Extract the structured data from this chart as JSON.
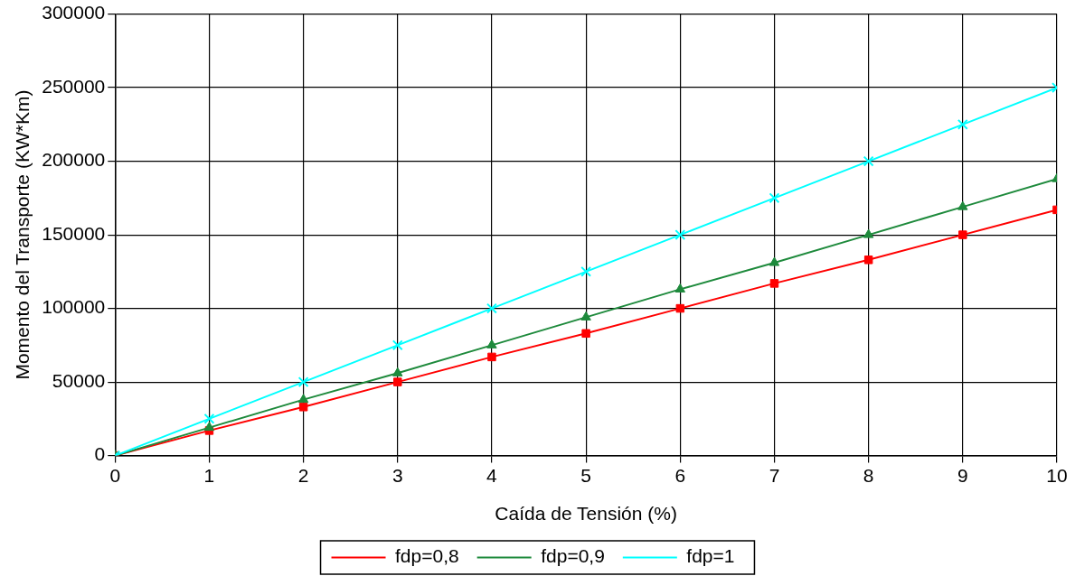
{
  "chart_data": {
    "type": "line",
    "xlabel": "Caída de Tensión (%)",
    "ylabel": "Momento del Transporte (KW*Km)",
    "x": [
      0,
      1,
      2,
      3,
      4,
      5,
      6,
      7,
      8,
      9,
      10
    ],
    "series": [
      {
        "name": "fdp=0,8",
        "color": "#ff0000",
        "marker": "square",
        "values": [
          0,
          17000,
          33000,
          50000,
          67000,
          83000,
          100000,
          117000,
          133000,
          150000,
          167000
        ]
      },
      {
        "name": "fdp=0,9",
        "color": "#1e8a3c",
        "marker": "triangle",
        "values": [
          0,
          19000,
          38000,
          56000,
          75000,
          94000,
          113000,
          131000,
          150000,
          169000,
          188000
        ]
      },
      {
        "name": "fdp=1",
        "color": "#00ffff",
        "marker": "cross",
        "values": [
          0,
          25000,
          50000,
          75000,
          100000,
          125000,
          150000,
          175000,
          200000,
          225000,
          250000
        ]
      }
    ],
    "xlim": [
      0,
      10
    ],
    "xticks": [
      0,
      1,
      2,
      3,
      4,
      5,
      6,
      7,
      8,
      9,
      10
    ],
    "ylim": [
      0,
      300000
    ],
    "yticks": [
      0,
      50000,
      100000,
      150000,
      200000,
      250000,
      300000
    ],
    "grid": true,
    "legend": "bottom",
    "line_style": "solid"
  }
}
